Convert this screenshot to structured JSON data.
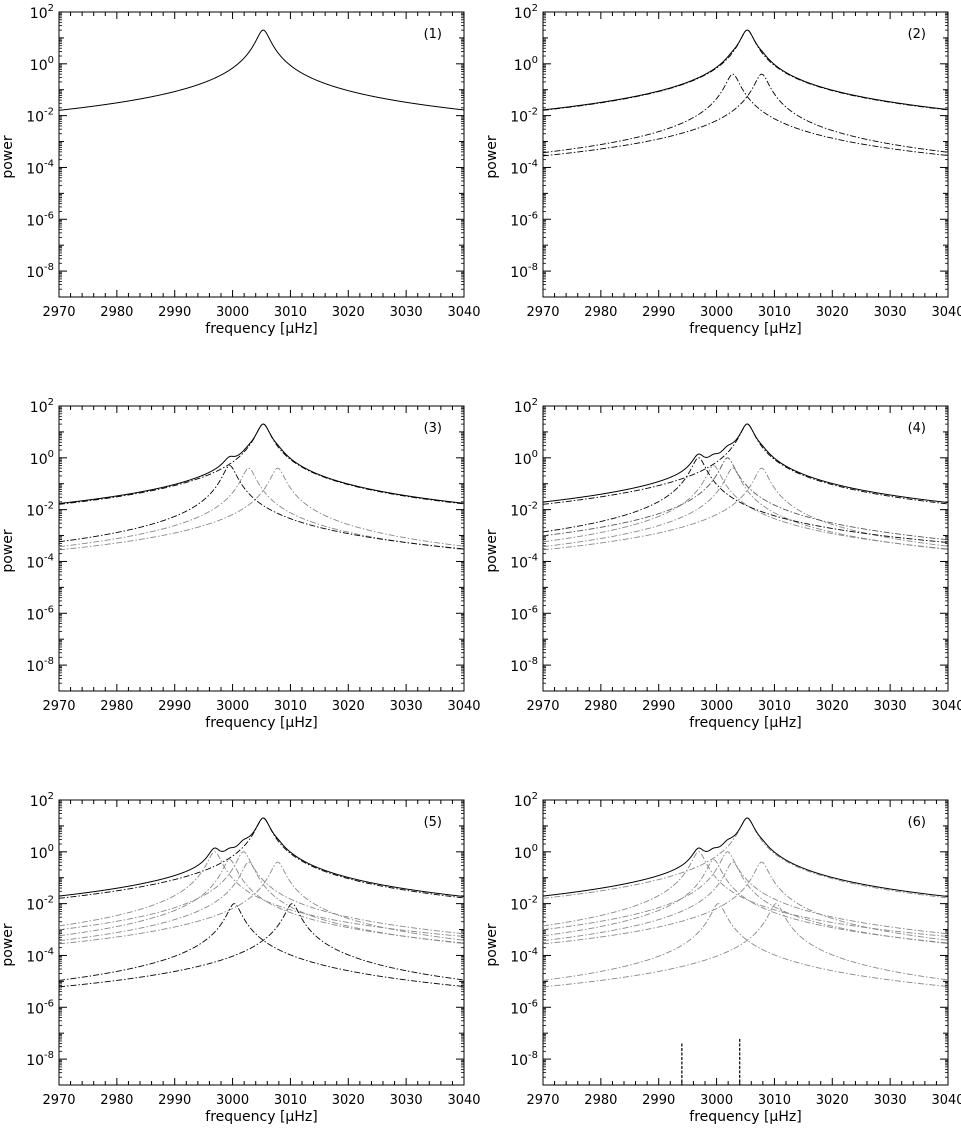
{
  "figure": {
    "xlabel": "frequency [μHz]",
    "ylabel": "power",
    "x_ticks": [
      2970,
      2980,
      2990,
      3000,
      3010,
      3020,
      3030,
      3040
    ],
    "y_tick_exponents": [
      2,
      0,
      -2,
      -4,
      -6,
      -8
    ]
  },
  "chart_data": [
    {
      "type": "line",
      "panel_label": "(1)",
      "xlabel": "frequency [μHz]",
      "ylabel": "power",
      "xlim": [
        2970,
        3040
      ],
      "ylim": [
        1e-09,
        100
      ],
      "yscale": "log",
      "grid": false,
      "series": [
        {
          "style": "solid",
          "color": "#000000",
          "kind": "sum",
          "components": [
            0
          ]
        }
      ],
      "components": [
        {
          "peak_freq": 3005.3,
          "peak_power": 20,
          "style": "dashdot",
          "color": "#000000"
        }
      ],
      "spikes": []
    },
    {
      "type": "line",
      "panel_label": "(2)",
      "xlabel": "frequency [μHz]",
      "ylabel": "power",
      "xlim": [
        2970,
        3040
      ],
      "ylim": [
        1e-09,
        100
      ],
      "yscale": "log",
      "grid": false,
      "series": [
        {
          "style": "solid",
          "color": "#000000",
          "kind": "sum",
          "components": [
            0,
            1,
            2
          ]
        }
      ],
      "components": [
        {
          "peak_freq": 3005.3,
          "peak_power": 20,
          "style": "dashdot",
          "color": "#000000"
        },
        {
          "peak_freq": 3002.8,
          "peak_power": 0.4,
          "style": "dashdot",
          "color": "#000000"
        },
        {
          "peak_freq": 3007.8,
          "peak_power": 0.4,
          "style": "dashdot",
          "color": "#000000"
        }
      ],
      "spikes": []
    },
    {
      "type": "line",
      "panel_label": "(3)",
      "xlabel": "frequency [μHz]",
      "ylabel": "power",
      "xlim": [
        2970,
        3040
      ],
      "ylim": [
        1e-09,
        100
      ],
      "yscale": "log",
      "grid": false,
      "series": [
        {
          "style": "solid",
          "color": "#000000",
          "kind": "sum",
          "components": [
            0,
            1,
            2,
            3
          ]
        }
      ],
      "components": [
        {
          "peak_freq": 3005.3,
          "peak_power": 20,
          "style": "dashdot",
          "color": "#000000"
        },
        {
          "peak_freq": 3002.8,
          "peak_power": 0.4,
          "style": "dashdot",
          "color": "#888888"
        },
        {
          "peak_freq": 3007.8,
          "peak_power": 0.4,
          "style": "dashdot",
          "color": "#888888"
        },
        {
          "peak_freq": 2999.5,
          "peak_power": 0.5,
          "style": "dashdot",
          "color": "#000000"
        }
      ],
      "spikes": []
    },
    {
      "type": "line",
      "panel_label": "(4)",
      "xlabel": "frequency [μHz]",
      "ylabel": "power",
      "xlim": [
        2970,
        3040
      ],
      "ylim": [
        1e-09,
        100
      ],
      "yscale": "log",
      "grid": false,
      "series": [
        {
          "style": "solid",
          "color": "#000000",
          "kind": "sum",
          "components": [
            0,
            1,
            2,
            3,
            4,
            5
          ]
        }
      ],
      "components": [
        {
          "peak_freq": 3005.3,
          "peak_power": 20,
          "style": "dashdot",
          "color": "#000000"
        },
        {
          "peak_freq": 3002.8,
          "peak_power": 0.4,
          "style": "dashdot",
          "color": "#888888"
        },
        {
          "peak_freq": 3007.8,
          "peak_power": 0.4,
          "style": "dashdot",
          "color": "#888888"
        },
        {
          "peak_freq": 2999.5,
          "peak_power": 0.5,
          "style": "dashdot",
          "color": "#888888"
        },
        {
          "peak_freq": 2996.9,
          "peak_power": 1.0,
          "style": "dashdot",
          "color": "#000000"
        },
        {
          "peak_freq": 3001.9,
          "peak_power": 1.0,
          "style": "dashdot",
          "color": "#555555"
        }
      ],
      "spikes": []
    },
    {
      "type": "line",
      "panel_label": "(5)",
      "xlabel": "frequency [μHz]",
      "ylabel": "power",
      "xlim": [
        2970,
        3040
      ],
      "ylim": [
        1e-09,
        100
      ],
      "yscale": "log",
      "grid": false,
      "series": [
        {
          "style": "solid",
          "color": "#000000",
          "kind": "sum",
          "components": [
            0,
            1,
            2,
            3,
            4,
            5,
            6,
            7
          ]
        }
      ],
      "components": [
        {
          "peak_freq": 3005.3,
          "peak_power": 20,
          "style": "dashdot",
          "color": "#000000"
        },
        {
          "peak_freq": 3002.8,
          "peak_power": 0.4,
          "style": "dashdot",
          "color": "#888888"
        },
        {
          "peak_freq": 3007.8,
          "peak_power": 0.4,
          "style": "dashdot",
          "color": "#888888"
        },
        {
          "peak_freq": 2999.5,
          "peak_power": 0.5,
          "style": "dashdot",
          "color": "#888888"
        },
        {
          "peak_freq": 2996.9,
          "peak_power": 1.0,
          "style": "dashdot",
          "color": "#888888"
        },
        {
          "peak_freq": 3001.9,
          "peak_power": 1.0,
          "style": "dashdot",
          "color": "#888888"
        },
        {
          "peak_freq": 3000.3,
          "peak_power": 0.01,
          "style": "dashdot",
          "color": "#000000"
        },
        {
          "peak_freq": 3010.3,
          "peak_power": 0.01,
          "style": "dashdot",
          "color": "#000000"
        }
      ],
      "spikes": []
    },
    {
      "type": "line",
      "panel_label": "(6)",
      "xlabel": "frequency [μHz]",
      "ylabel": "power",
      "xlim": [
        2970,
        3040
      ],
      "ylim": [
        1e-09,
        100
      ],
      "yscale": "log",
      "grid": false,
      "series": [
        {
          "style": "solid",
          "color": "#000000",
          "kind": "sum",
          "components": [
            0,
            1,
            2,
            3,
            4,
            5,
            6,
            7
          ]
        }
      ],
      "components": [
        {
          "peak_freq": 3005.3,
          "peak_power": 20,
          "style": "dashdot",
          "color": "#888888"
        },
        {
          "peak_freq": 3002.8,
          "peak_power": 0.4,
          "style": "dashdot",
          "color": "#888888"
        },
        {
          "peak_freq": 3007.8,
          "peak_power": 0.4,
          "style": "dashdot",
          "color": "#888888"
        },
        {
          "peak_freq": 2999.5,
          "peak_power": 0.5,
          "style": "dashdot",
          "color": "#888888"
        },
        {
          "peak_freq": 2996.9,
          "peak_power": 1.0,
          "style": "dashdot",
          "color": "#888888"
        },
        {
          "peak_freq": 3001.9,
          "peak_power": 1.0,
          "style": "dashdot",
          "color": "#888888"
        },
        {
          "peak_freq": 3000.3,
          "peak_power": 0.01,
          "style": "dashdot",
          "color": "#888888"
        },
        {
          "peak_freq": 3010.3,
          "peak_power": 0.01,
          "style": "dashdot",
          "color": "#888888"
        }
      ],
      "spikes": [
        {
          "freq": 2994.0,
          "power_top": 4e-08,
          "color": "#000000"
        },
        {
          "freq": 3004.0,
          "power_top": 6e-08,
          "color": "#000000"
        }
      ]
    }
  ]
}
